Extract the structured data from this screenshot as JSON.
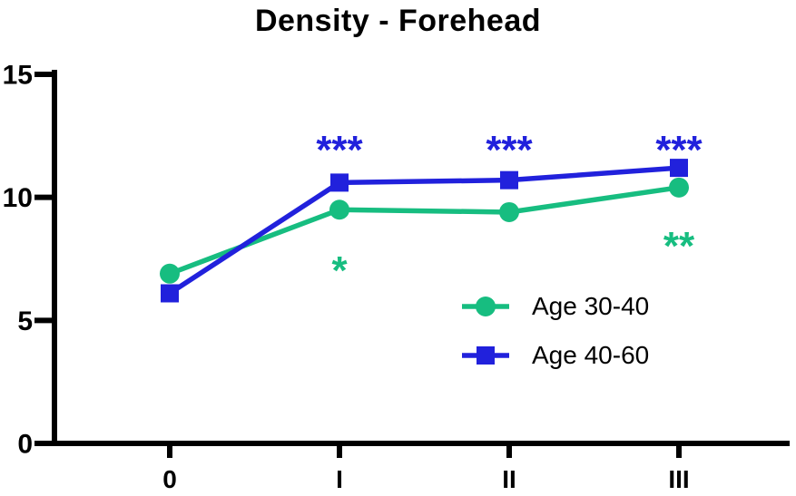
{
  "title": "Density - Forehead",
  "chart_data": {
    "type": "line",
    "categories": [
      "0",
      "I",
      "II",
      "III"
    ],
    "series": [
      {
        "name": "Age 30-40",
        "marker": "circle",
        "color": "#17bd80",
        "values": [
          6.9,
          9.5,
          9.4,
          10.4
        ]
      },
      {
        "name": "Age 40-60",
        "marker": "square",
        "color": "#2121dc",
        "values": [
          6.1,
          10.6,
          10.7,
          11.2
        ]
      }
    ],
    "ylim": [
      0,
      15
    ],
    "yticks": [
      0,
      5,
      10,
      15
    ],
    "xlabel": "",
    "ylabel": "",
    "grid": false,
    "legend_position": "inside-right",
    "annotations": [
      {
        "text": "***",
        "category": "I",
        "y": 12.2,
        "color": "#2121dc"
      },
      {
        "text": "***",
        "category": "II",
        "y": 12.2,
        "color": "#2121dc"
      },
      {
        "text": "***",
        "category": "III",
        "y": 12.2,
        "color": "#2121dc"
      },
      {
        "text": "*",
        "category": "I",
        "y": 7.3,
        "color": "#17bd80"
      },
      {
        "text": "**",
        "category": "III",
        "y": 8.3,
        "color": "#17bd80"
      }
    ]
  }
}
